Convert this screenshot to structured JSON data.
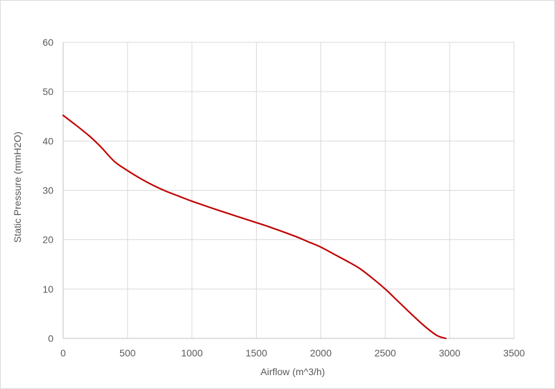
{
  "chart_data": {
    "type": "line",
    "title": "",
    "xlabel": "Airflow (m^3/h)",
    "ylabel": "Static Pressure (mmH2O)",
    "xlim": [
      0,
      3500
    ],
    "ylim": [
      0,
      60
    ],
    "x_ticks": [
      "0",
      "500",
      "1000",
      "1500",
      "2000",
      "2500",
      "3000",
      "3500"
    ],
    "y_ticks": [
      "0",
      "10",
      "20",
      "30",
      "40",
      "50",
      "60"
    ],
    "x_tick_values": [
      0,
      500,
      1000,
      1500,
      2000,
      2500,
      3000,
      3500
    ],
    "y_tick_values": [
      0,
      10,
      20,
      30,
      40,
      50,
      60
    ],
    "grid": true,
    "legend": "none",
    "series": [
      {
        "color": "#c00000",
        "x": [
          0,
          100,
          200,
          250,
          300,
          400,
          500,
          600,
          700,
          800,
          900,
          1000,
          1200,
          1400,
          1600,
          1800,
          1900,
          2000,
          2100,
          2200,
          2300,
          2400,
          2500,
          2600,
          2700,
          2800,
          2900,
          2970
        ],
        "values": [
          45.2,
          43.2,
          41.1,
          39.9,
          38.6,
          35.8,
          34.0,
          32.4,
          31.0,
          29.8,
          28.8,
          27.8,
          26.0,
          24.3,
          22.6,
          20.7,
          19.6,
          18.5,
          17.1,
          15.7,
          14.2,
          12.2,
          10.0,
          7.5,
          5.0,
          2.6,
          0.6,
          0
        ]
      }
    ]
  }
}
